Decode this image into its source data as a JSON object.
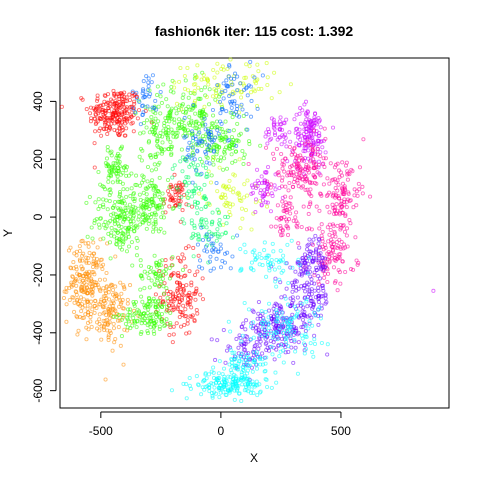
{
  "chart_data": {
    "type": "scatter",
    "title": "fashion6k iter: 115 cost: 1.392",
    "xlabel": "X",
    "ylabel": "Y",
    "xlim": [
      -670,
      950
    ],
    "ylim": [
      -660,
      550
    ],
    "xticks": [
      {
        "value": -500,
        "label": "-500"
      },
      {
        "value": 0,
        "label": "0"
      },
      {
        "value": 500,
        "label": "500"
      }
    ],
    "yticks": [
      {
        "value": -600,
        "label": "-600"
      },
      {
        "value": -400,
        "label": "-400"
      },
      {
        "value": -200,
        "label": "-200"
      },
      {
        "value": 0,
        "label": "0"
      },
      {
        "value": 200,
        "label": "200"
      },
      {
        "value": 400,
        "label": "400"
      }
    ],
    "grid": false,
    "legend": "none",
    "marker": "open-circle",
    "point_alpha": 0.55,
    "clusters": [
      {
        "color": "#FF0000",
        "cx": -440,
        "cy": 360,
        "sx": 55,
        "sy": 45,
        "n": 220
      },
      {
        "color": "#FF0000",
        "cx": -170,
        "cy": -270,
        "sx": 40,
        "sy": 70,
        "n": 140
      },
      {
        "color": "#FF0000",
        "cx": -190,
        "cy": 70,
        "sx": 25,
        "sy": 30,
        "n": 50
      },
      {
        "color": "#FF8C00",
        "cx": -560,
        "cy": -230,
        "sx": 40,
        "sy": 70,
        "n": 190
      },
      {
        "color": "#FF8C00",
        "cx": -460,
        "cy": -330,
        "sx": 40,
        "sy": 60,
        "n": 120
      },
      {
        "color": "#33FF00",
        "cx": -440,
        "cy": 170,
        "sx": 30,
        "sy": 30,
        "n": 70
      },
      {
        "color": "#33FF00",
        "cx": -420,
        "cy": -10,
        "sx": 55,
        "sy": 60,
        "n": 160
      },
      {
        "color": "#33FF00",
        "cx": -300,
        "cy": 40,
        "sx": 45,
        "sy": 50,
        "n": 120
      },
      {
        "color": "#33FF00",
        "cx": -300,
        "cy": -340,
        "sx": 55,
        "sy": 30,
        "n": 120
      },
      {
        "color": "#33FF00",
        "cx": -270,
        "cy": -200,
        "sx": 35,
        "sy": 40,
        "n": 60
      },
      {
        "color": "#33FF00",
        "cx": -250,
        "cy": 290,
        "sx": 45,
        "sy": 70,
        "n": 110
      },
      {
        "color": "#33FF00",
        "cx": -120,
        "cy": 340,
        "sx": 70,
        "sy": 60,
        "n": 150
      },
      {
        "color": "#33FF00",
        "cx": 20,
        "cy": 250,
        "sx": 50,
        "sy": 40,
        "n": 90
      },
      {
        "color": "#CCFF00",
        "cx": 10,
        "cy": 460,
        "sx": 110,
        "sy": 40,
        "n": 90
      },
      {
        "color": "#CCFF00",
        "cx": 40,
        "cy": 80,
        "sx": 60,
        "sy": 50,
        "n": 60
      },
      {
        "color": "#00FF66",
        "cx": -120,
        "cy": 120,
        "sx": 40,
        "sy": 50,
        "n": 60
      },
      {
        "color": "#00FF66",
        "cx": -60,
        "cy": -40,
        "sx": 50,
        "sy": 50,
        "n": 60
      },
      {
        "color": "#0066FF",
        "cx": -70,
        "cy": 250,
        "sx": 40,
        "sy": 50,
        "n": 60
      },
      {
        "color": "#0066FF",
        "cx": 60,
        "cy": 420,
        "sx": 40,
        "sy": 60,
        "n": 60
      },
      {
        "color": "#0066FF",
        "cx": -310,
        "cy": 420,
        "sx": 30,
        "sy": 40,
        "n": 35
      },
      {
        "color": "#0066FF",
        "cx": -30,
        "cy": -110,
        "sx": 40,
        "sy": 40,
        "n": 35
      },
      {
        "color": "#CC00FF",
        "cx": 370,
        "cy": 280,
        "sx": 35,
        "sy": 50,
        "n": 140
      },
      {
        "color": "#CC00FF",
        "cx": 180,
        "cy": 100,
        "sx": 30,
        "sy": 40,
        "n": 50
      },
      {
        "color": "#CC00FF",
        "cx": 240,
        "cy": 300,
        "sx": 30,
        "sy": 30,
        "n": 40
      },
      {
        "color": "#FF0099",
        "cx": 340,
        "cy": 160,
        "sx": 70,
        "sy": 50,
        "n": 160
      },
      {
        "color": "#FF0099",
        "cx": 500,
        "cy": 60,
        "sx": 40,
        "sy": 60,
        "n": 110
      },
      {
        "color": "#FF0099",
        "cx": 460,
        "cy": -130,
        "sx": 50,
        "sy": 50,
        "n": 100
      },
      {
        "color": "#FF0099",
        "cx": 270,
        "cy": -10,
        "sx": 40,
        "sy": 40,
        "n": 50
      },
      {
        "color": "#6600FF",
        "cx": 240,
        "cy": -380,
        "sx": 70,
        "sy": 40,
        "n": 180
      },
      {
        "color": "#6600FF",
        "cx": 360,
        "cy": -270,
        "sx": 50,
        "sy": 60,
        "n": 120
      },
      {
        "color": "#6600FF",
        "cx": 380,
        "cy": -150,
        "sx": 30,
        "sy": 40,
        "n": 60
      },
      {
        "color": "#6600FF",
        "cx": 110,
        "cy": -460,
        "sx": 50,
        "sy": 30,
        "n": 60
      },
      {
        "color": "#00FFFF",
        "cx": 30,
        "cy": -580,
        "sx": 70,
        "sy": 20,
        "n": 160
      },
      {
        "color": "#00FFFF",
        "cx": 100,
        "cy": -510,
        "sx": 50,
        "sy": 30,
        "n": 70
      },
      {
        "color": "#00FFFF",
        "cx": 260,
        "cy": -380,
        "sx": 90,
        "sy": 50,
        "n": 110
      },
      {
        "color": "#00FFFF",
        "cx": 210,
        "cy": -150,
        "sx": 60,
        "sy": 40,
        "n": 60
      }
    ],
    "outliers": [
      {
        "x": 885,
        "y": -255,
        "color": "#CC00FF"
      },
      {
        "x": -600,
        "y": -120,
        "color": "#FF8C00"
      },
      {
        "x": 40,
        "y": 545,
        "color": "#CCFF00"
      }
    ]
  }
}
